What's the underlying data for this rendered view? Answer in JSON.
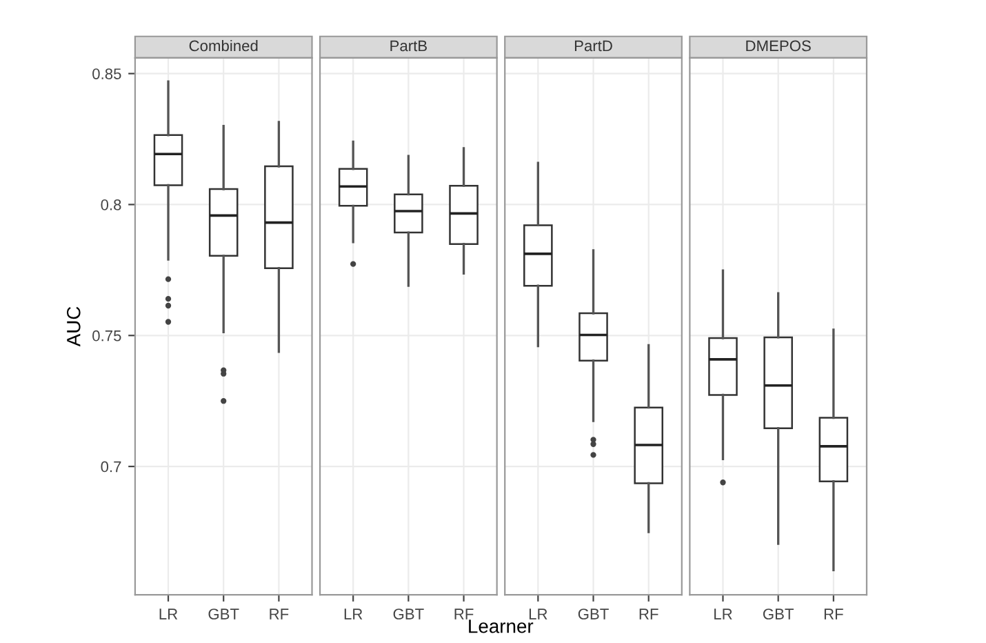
{
  "chart_data": [
    {
      "type": "box",
      "title": "Combined",
      "ylabel": "AUC",
      "categories": [
        "LR",
        "GBT",
        "RF"
      ],
      "ylim": [
        0.651,
        0.856
      ],
      "yticks": [
        0.7,
        0.75,
        0.8,
        0.85
      ],
      "grid": true,
      "boxes": [
        {
          "low": 0.779,
          "q1": 0.8074,
          "median": 0.8193,
          "q3": 0.8265,
          "high": 0.847,
          "outliers": [
            0.7715,
            0.764,
            0.7614,
            0.7552
          ]
        },
        {
          "low": 0.7513,
          "q1": 0.7804,
          "median": 0.7958,
          "q3": 0.8059,
          "high": 0.83,
          "outliers": [
            0.7367,
            0.7354,
            0.725
          ]
        },
        {
          "low": 0.7438,
          "q1": 0.7757,
          "median": 0.7931,
          "q3": 0.8146,
          "high": 0.8315
        }
      ]
    },
    {
      "type": "box",
      "title": "PartB",
      "xlabel": "Learner",
      "categories": [
        "LR",
        "GBT",
        "RF"
      ],
      "ylim": [
        0.651,
        0.856
      ],
      "yticks": [
        0.7,
        0.75,
        0.8,
        0.85
      ],
      "grid": true,
      "tick_labels": "x",
      "boxes": [
        {
          "low": 0.7857,
          "q1": 0.7995,
          "median": 0.8069,
          "q3": 0.8136,
          "high": 0.824,
          "outliers": [
            0.7773
          ]
        },
        {
          "low": 0.769,
          "q1": 0.7893,
          "median": 0.7975,
          "q3": 0.8039,
          "high": 0.8185
        },
        {
          "low": 0.7737,
          "q1": 0.7849,
          "median": 0.7966,
          "q3": 0.8072,
          "high": 0.8215
        }
      ]
    },
    {
      "type": "box",
      "title": "PartD",
      "categories": [
        "LR",
        "GBT",
        "RF"
      ],
      "ylim": [
        0.651,
        0.856
      ],
      "yticks": [
        0.7,
        0.75,
        0.8,
        0.85
      ],
      "grid": true,
      "tick_labels": "x",
      "boxes": [
        {
          "low": 0.746,
          "q1": 0.769,
          "median": 0.7812,
          "q3": 0.7921,
          "high": 0.8159
        },
        {
          "low": 0.7174,
          "q1": 0.7404,
          "median": 0.7502,
          "q3": 0.7585,
          "high": 0.7825,
          "outliers": [
            0.7102,
            0.7085,
            0.7044
          ]
        },
        {
          "low": 0.675,
          "q1": 0.6936,
          "median": 0.7082,
          "q3": 0.7225,
          "high": 0.7463
        }
      ]
    },
    {
      "type": "box",
      "title": "DMEPOS",
      "categories": [
        "LR",
        "GBT",
        "RF"
      ],
      "ylim": [
        0.651,
        0.856
      ],
      "yticks": [
        0.7,
        0.75,
        0.8,
        0.85
      ],
      "grid": true,
      "tick_labels": "x",
      "boxes": [
        {
          "low": 0.7028,
          "q1": 0.7273,
          "median": 0.7409,
          "q3": 0.749,
          "high": 0.7748,
          "outliers": [
            0.6939
          ]
        },
        {
          "low": 0.6705,
          "q1": 0.7146,
          "median": 0.7309,
          "q3": 0.7493,
          "high": 0.7661
        },
        {
          "low": 0.6604,
          "q1": 0.6943,
          "median": 0.7077,
          "q3": 0.7186,
          "high": 0.7522
        }
      ]
    }
  ]
}
